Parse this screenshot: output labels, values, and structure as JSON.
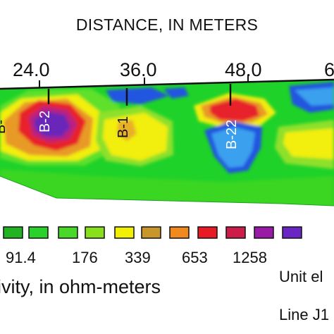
{
  "axis": {
    "title": "DISTANCE, IN METERS",
    "ticks": [
      "24.0",
      "36.0",
      "48.0",
      "6"
    ]
  },
  "boreholes": [
    "B-2",
    "B-1",
    "B-22",
    "B-"
  ],
  "legend": {
    "values": [
      "91.4",
      "176",
      "339",
      "653",
      "1258"
    ],
    "units_label": "ivity, in ohm-meters",
    "swatch_colors": [
      "#22b322",
      "#2ad12a",
      "#49d82a",
      "#88e01c",
      "#f0f000",
      "#c8962a",
      "#f08a1e",
      "#e81a24",
      "#cc1c4a",
      "#9a1aa8",
      "#6a26c4"
    ]
  },
  "notes": {
    "unit": "Unit el",
    "line": "Line J1"
  },
  "colors": {
    "green": "#1ed22a",
    "yellow": "#f2ee10",
    "orange": "#e89a28",
    "red": "#e8202a",
    "magenta": "#b82080",
    "purple": "#6a28b8",
    "blue": "#2455e0",
    "light_blue": "#3aa0ee"
  }
}
